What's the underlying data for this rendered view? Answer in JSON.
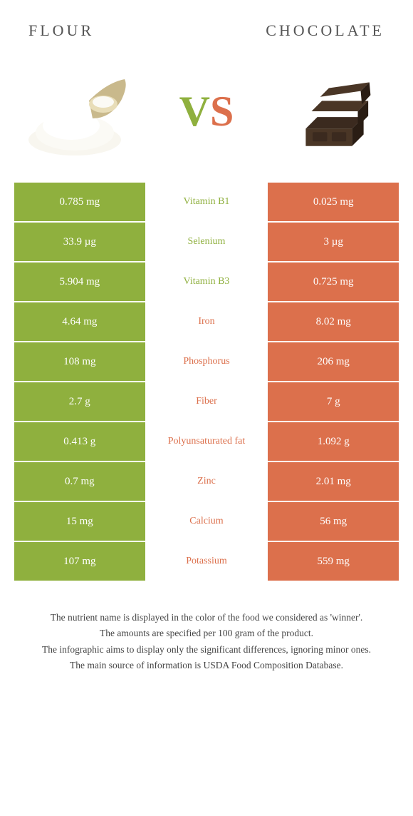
{
  "header": {
    "left": "FLOUR",
    "right": "CHOCOLATE"
  },
  "vs": {
    "v": "V",
    "s": "S"
  },
  "colors": {
    "green": "#8fb03e",
    "orange": "#dc704c"
  },
  "rows": [
    {
      "left": "0.785 mg",
      "name": "Vitamin B1",
      "right": "0.025 mg",
      "winner": "green"
    },
    {
      "left": "33.9 µg",
      "name": "Selenium",
      "right": "3 µg",
      "winner": "green"
    },
    {
      "left": "5.904 mg",
      "name": "Vitamin B3",
      "right": "0.725 mg",
      "winner": "green"
    },
    {
      "left": "4.64 mg",
      "name": "Iron",
      "right": "8.02 mg",
      "winner": "orange"
    },
    {
      "left": "108 mg",
      "name": "Phosphorus",
      "right": "206 mg",
      "winner": "orange"
    },
    {
      "left": "2.7 g",
      "name": "Fiber",
      "right": "7 g",
      "winner": "orange"
    },
    {
      "left": "0.413 g",
      "name": "Polyunsaturated fat",
      "right": "1.092 g",
      "winner": "orange"
    },
    {
      "left": "0.7 mg",
      "name": "Zinc",
      "right": "2.01 mg",
      "winner": "orange"
    },
    {
      "left": "15 mg",
      "name": "Calcium",
      "right": "56 mg",
      "winner": "orange"
    },
    {
      "left": "107 mg",
      "name": "Potassium",
      "right": "559 mg",
      "winner": "orange"
    }
  ],
  "footnote": {
    "l1": "The nutrient name is displayed in the color of the food we considered as 'winner'.",
    "l2": "The amounts are specified per 100 gram of the product.",
    "l3": "The infographic aims to display only the significant differences, ignoring minor ones.",
    "l4": "The main source of information is USDA Food Composition Database."
  }
}
